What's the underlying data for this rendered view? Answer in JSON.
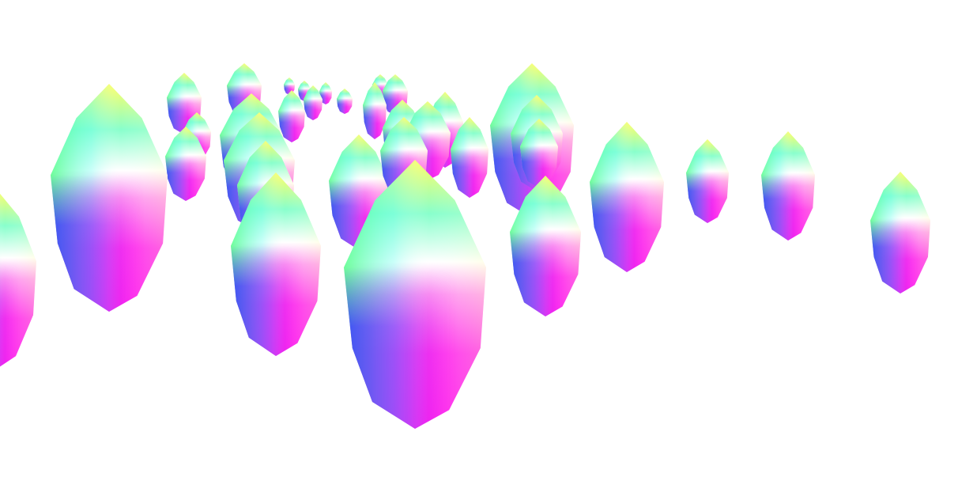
{
  "scene": {
    "background": "#ffffff",
    "palette": {
      "tip": "#ffff66",
      "upper_left": "#55ff99",
      "middle": "#ffffff",
      "lower_left": "#7b2bff",
      "lower_right": "#ff22ee",
      "edge_cyan": "#66ffff"
    }
  }
}
